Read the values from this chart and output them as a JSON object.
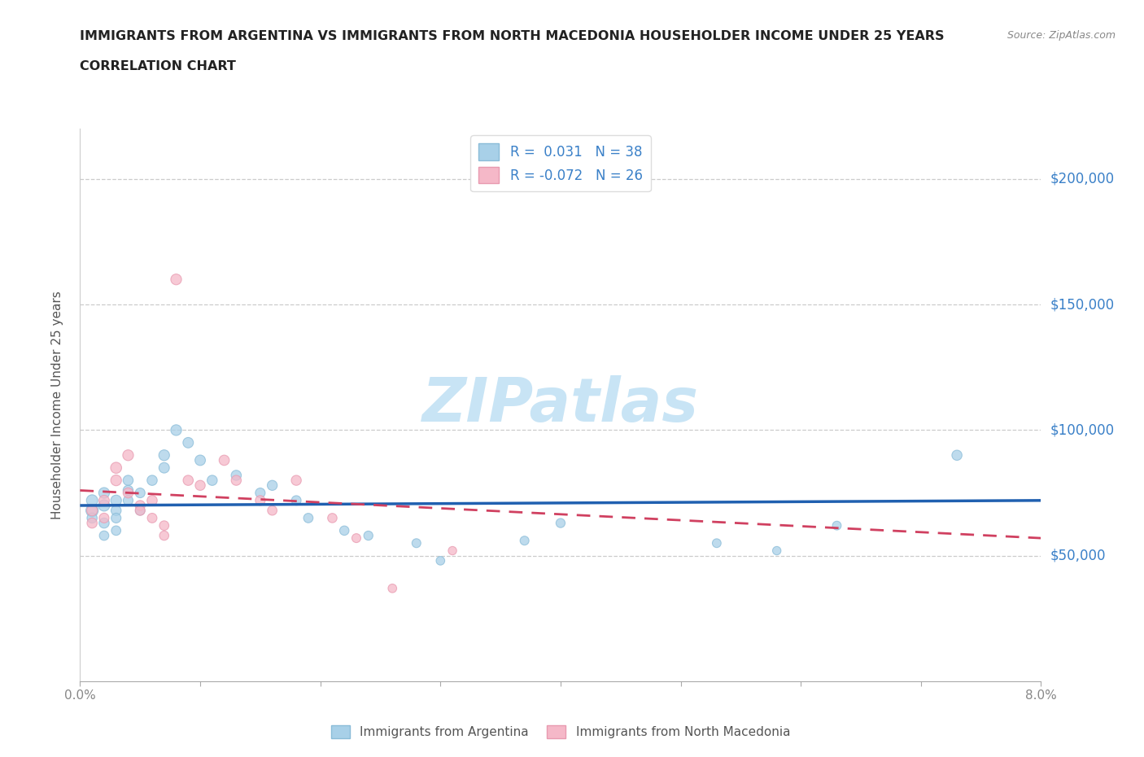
{
  "title_line1": "IMMIGRANTS FROM ARGENTINA VS IMMIGRANTS FROM NORTH MACEDONIA HOUSEHOLDER INCOME UNDER 25 YEARS",
  "title_line2": "CORRELATION CHART",
  "source_text": "Source: ZipAtlas.com",
  "ylabel": "Householder Income Under 25 years",
  "xlim": [
    0.0,
    0.08
  ],
  "ylim": [
    0,
    220000
  ],
  "yticks": [
    0,
    50000,
    100000,
    150000,
    200000
  ],
  "ytick_labels": [
    "",
    "$50,000",
    "$100,000",
    "$150,000",
    "$200,000"
  ],
  "r_argentina": 0.031,
  "n_argentina": 38,
  "r_macedonia": -0.072,
  "n_macedonia": 26,
  "color_argentina": "#a8d0e8",
  "color_macedonia": "#f5b8c8",
  "color_argentina_edge": "#8abcd8",
  "color_macedonia_edge": "#e89ab0",
  "trendline_argentina": "#2060b0",
  "trendline_macedonia": "#d04060",
  "watermark_color": "#c8e4f5",
  "legend_label_argentina": "Immigrants from Argentina",
  "legend_label_macedonia": "Immigrants from North Macedonia",
  "trendline_arg_y0": 70000,
  "trendline_arg_y1": 72000,
  "trendline_mac_y0": 76000,
  "trendline_mac_y1": 57000,
  "argentina_x": [
    0.001,
    0.001,
    0.001,
    0.002,
    0.002,
    0.002,
    0.002,
    0.003,
    0.003,
    0.003,
    0.003,
    0.004,
    0.004,
    0.004,
    0.005,
    0.005,
    0.006,
    0.007,
    0.007,
    0.008,
    0.009,
    0.01,
    0.011,
    0.013,
    0.015,
    0.016,
    0.018,
    0.019,
    0.022,
    0.024,
    0.028,
    0.03,
    0.037,
    0.04,
    0.053,
    0.058,
    0.063,
    0.073
  ],
  "argentina_y": [
    68000,
    72000,
    65000,
    75000,
    70000,
    63000,
    58000,
    72000,
    68000,
    65000,
    60000,
    80000,
    72000,
    76000,
    68000,
    75000,
    80000,
    85000,
    90000,
    100000,
    95000,
    88000,
    80000,
    82000,
    75000,
    78000,
    72000,
    65000,
    60000,
    58000,
    55000,
    48000,
    56000,
    63000,
    55000,
    52000,
    62000,
    90000
  ],
  "argentina_sizes": [
    120,
    100,
    80,
    90,
    100,
    80,
    70,
    90,
    80,
    75,
    70,
    80,
    75,
    80,
    70,
    75,
    80,
    85,
    90,
    90,
    85,
    85,
    80,
    80,
    75,
    78,
    72,
    70,
    68,
    65,
    62,
    58,
    62,
    65,
    60,
    55,
    60,
    80
  ],
  "macedonia_x": [
    0.001,
    0.001,
    0.002,
    0.002,
    0.003,
    0.003,
    0.004,
    0.004,
    0.005,
    0.005,
    0.006,
    0.006,
    0.007,
    0.007,
    0.008,
    0.009,
    0.01,
    0.012,
    0.013,
    0.015,
    0.016,
    0.018,
    0.021,
    0.023,
    0.026,
    0.031
  ],
  "macedonia_y": [
    68000,
    63000,
    72000,
    65000,
    80000,
    85000,
    90000,
    75000,
    70000,
    68000,
    72000,
    65000,
    62000,
    58000,
    160000,
    80000,
    78000,
    88000,
    80000,
    72000,
    68000,
    80000,
    65000,
    57000,
    37000,
    52000
  ],
  "macedonia_sizes": [
    90,
    80,
    85,
    75,
    90,
    95,
    90,
    80,
    78,
    75,
    80,
    72,
    70,
    68,
    90,
    80,
    78,
    82,
    78,
    75,
    70,
    78,
    68,
    62,
    58,
    55
  ]
}
